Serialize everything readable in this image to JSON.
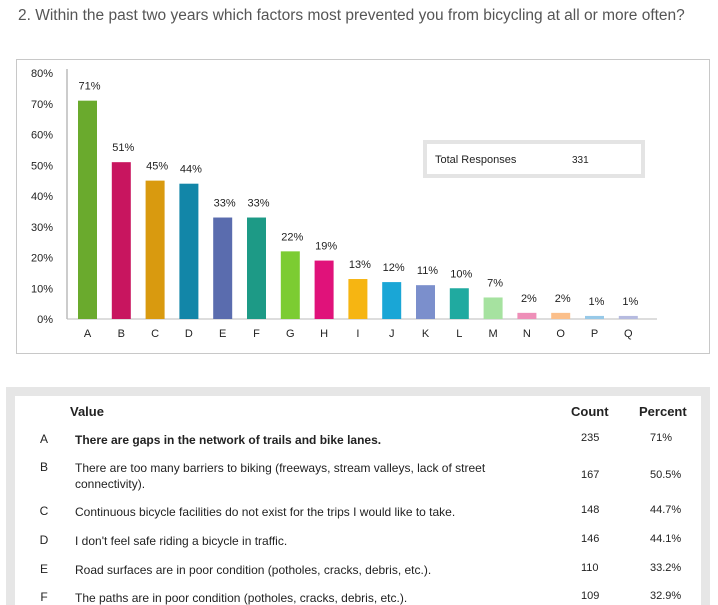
{
  "question": "2. Within the past two years which factors most prevented you from bicycling at all or more often?",
  "total": {
    "label": "Total Responses",
    "value": "331"
  },
  "chart_data": {
    "type": "bar",
    "categories": [
      "A",
      "B",
      "C",
      "D",
      "E",
      "F",
      "G",
      "H",
      "I",
      "J",
      "K",
      "L",
      "M",
      "N",
      "O",
      "P",
      "Q"
    ],
    "values": [
      71,
      51,
      45,
      44,
      33,
      33,
      22,
      19,
      13,
      12,
      11,
      10,
      7,
      2,
      2,
      1,
      1
    ],
    "data_labels": [
      "71%",
      "51%",
      "45%",
      "44%",
      "33%",
      "33%",
      "22%",
      "19%",
      "13%",
      "12%",
      "11%",
      "10%",
      "7%",
      "2%",
      "2%",
      "1%",
      "1%"
    ],
    "colors": [
      "#6aaa2d",
      "#c8155f",
      "#d99a0f",
      "#1286a8",
      "#5a6cae",
      "#1d9a86",
      "#7ccc32",
      "#e0127a",
      "#f6b512",
      "#1aa6d6",
      "#7b8fcc",
      "#20aaa0",
      "#a6e2a0",
      "#ee8fb8",
      "#fbbf8a",
      "#97c9e8",
      "#b6bbe0"
    ],
    "y_ticks": [
      "0%",
      "10%",
      "20%",
      "30%",
      "40%",
      "50%",
      "60%",
      "70%",
      "80%"
    ],
    "ylim": [
      0,
      80
    ],
    "grid": false,
    "legend": "none"
  },
  "table": {
    "headers": {
      "value": "Value",
      "count": "Count",
      "percent": "Percent"
    },
    "rows": [
      {
        "key": "A",
        "text": "There are gaps in the network of trails and bike lanes.",
        "count": "235",
        "percent": "71%",
        "bold": true
      },
      {
        "key": "B",
        "text": "There are too many barriers to biking (freeways, stream valleys, lack of street connectivity).",
        "count": "167",
        "percent": "50.5%",
        "bold": false
      },
      {
        "key": "C",
        "text": "Continuous bicycle facilities do not exist for the trips I would like to take.",
        "count": "148",
        "percent": "44.7%",
        "bold": false
      },
      {
        "key": "D",
        "text": "I don't feel safe riding a bicycle in traffic.",
        "count": "146",
        "percent": "44.1%",
        "bold": false
      },
      {
        "key": "E",
        "text": "Road surfaces are in poor condition (potholes, cracks, debris, etc.).",
        "count": "110",
        "percent": "33.2%",
        "bold": false
      },
      {
        "key": "F",
        "text": "The paths are in poor condition (potholes, cracks, debris, etc.).",
        "count": "109",
        "percent": "32.9%",
        "bold": false
      }
    ]
  }
}
